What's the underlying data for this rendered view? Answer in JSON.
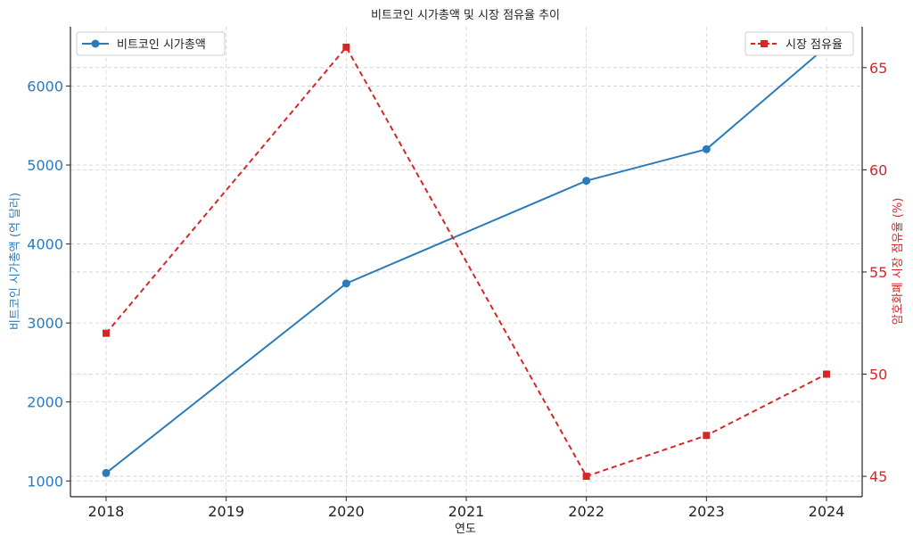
{
  "chart_data": {
    "type": "line",
    "title": "비트코인 시가총액 및 시장 점유율 추이",
    "xlabel": "연도",
    "x": [
      "2018",
      "2019",
      "2020",
      "2021",
      "2022",
      "2023",
      "2024"
    ],
    "series": [
      {
        "name": "비트코인 시가총액",
        "axis": "left",
        "ylabel": "비트코인 시가총액 (억 달러)",
        "color": "#2b7bba",
        "marker": "circle",
        "linestyle": "solid",
        "x": [
          "2018",
          "2020",
          "2022",
          "2023",
          "2024"
        ],
        "values": [
          1100,
          3500,
          4800,
          5200,
          6500
        ],
        "yticks": [
          1000,
          2000,
          3000,
          4000,
          5000,
          6000
        ],
        "ylim": [
          800,
          6750
        ]
      },
      {
        "name": "시장 점유율",
        "axis": "right",
        "ylabel": "암호화폐 시장 점유율 (%)",
        "color": "#d62728",
        "marker": "square",
        "linestyle": "dashed",
        "x": [
          "2018",
          "2020",
          "2022",
          "2023",
          "2024"
        ],
        "values": [
          52,
          66,
          45,
          47,
          50
        ],
        "yticks": [
          45,
          50,
          55,
          60,
          65
        ],
        "ylim": [
          44,
          67
        ]
      }
    ],
    "grid": true,
    "legend_left": "top-left",
    "legend_right": "top-right"
  }
}
